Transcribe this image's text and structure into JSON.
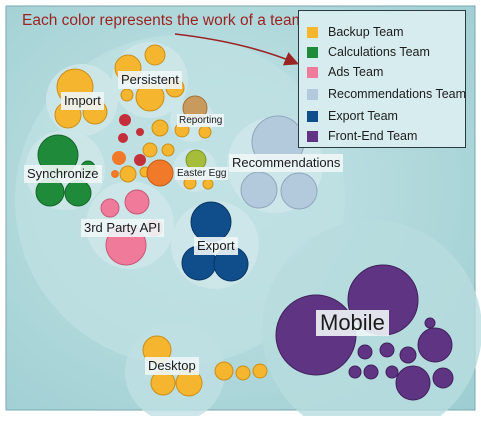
{
  "annotation": "Each color represents the work of a team.",
  "legend": [
    {
      "label": "Backup Team",
      "color": "#f6b52e"
    },
    {
      "label": "Calculations Team",
      "color": "#1f8a3a"
    },
    {
      "label": "Ads Team",
      "color": "#ef7a99"
    },
    {
      "label": "Recommendations Team",
      "color": "#b3c9dc"
    },
    {
      "label": "Export Team",
      "color": "#0f4e8a"
    },
    {
      "label": "Front-End Team",
      "color": "#5e3483"
    }
  ],
  "clusters": {
    "import": "Import",
    "persistent": "Persistent",
    "reporting": "Reporting",
    "synchronize": "Synchronize",
    "easter_egg": "Easter Egg",
    "recommendations": "Recommendations",
    "third_party_api": "3rd Party API",
    "export": "Export",
    "mobile": "Mobile",
    "desktop": "Desktop"
  },
  "colors": {
    "background": "#a8d5d8",
    "cluster_fill": "#c6e3e5",
    "extra_orange": "#f07a2a",
    "extra_red": "#c3303b",
    "extra_olive": "#a6bd3a",
    "extra_tan": "#c89a5e",
    "annotation_text": "#9a2424"
  }
}
